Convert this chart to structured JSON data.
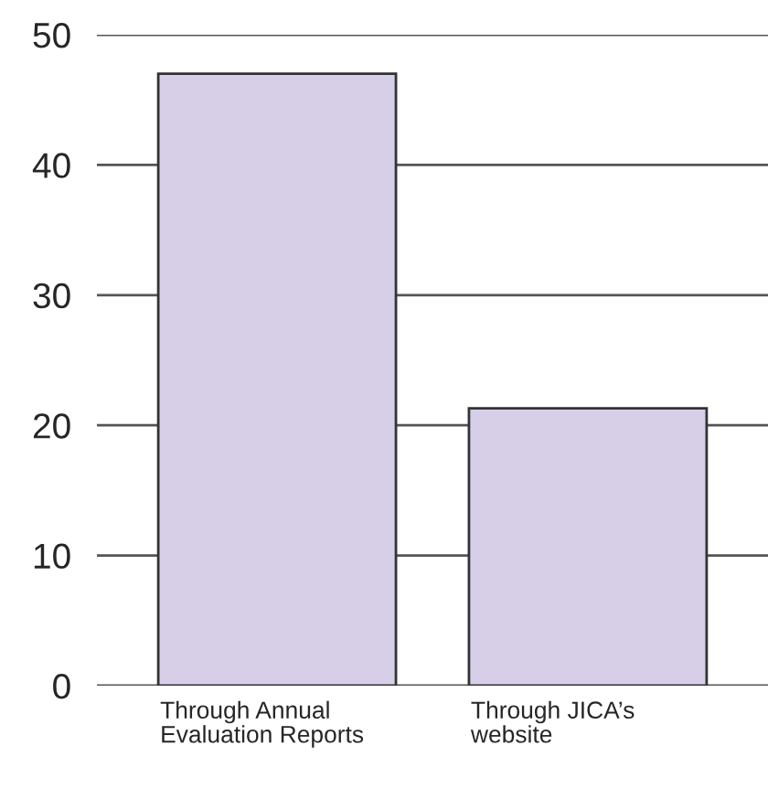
{
  "chart_data": {
    "type": "bar",
    "categories": [
      "Through Annual Evaluation Reports",
      "Through JICA’s website"
    ],
    "values": [
      47.0,
      21.3
    ],
    "color": "#d6cfe7",
    "ylim": [
      0,
      50
    ],
    "yticks": [
      0,
      10,
      20,
      30,
      40,
      50
    ],
    "grid": "y"
  }
}
